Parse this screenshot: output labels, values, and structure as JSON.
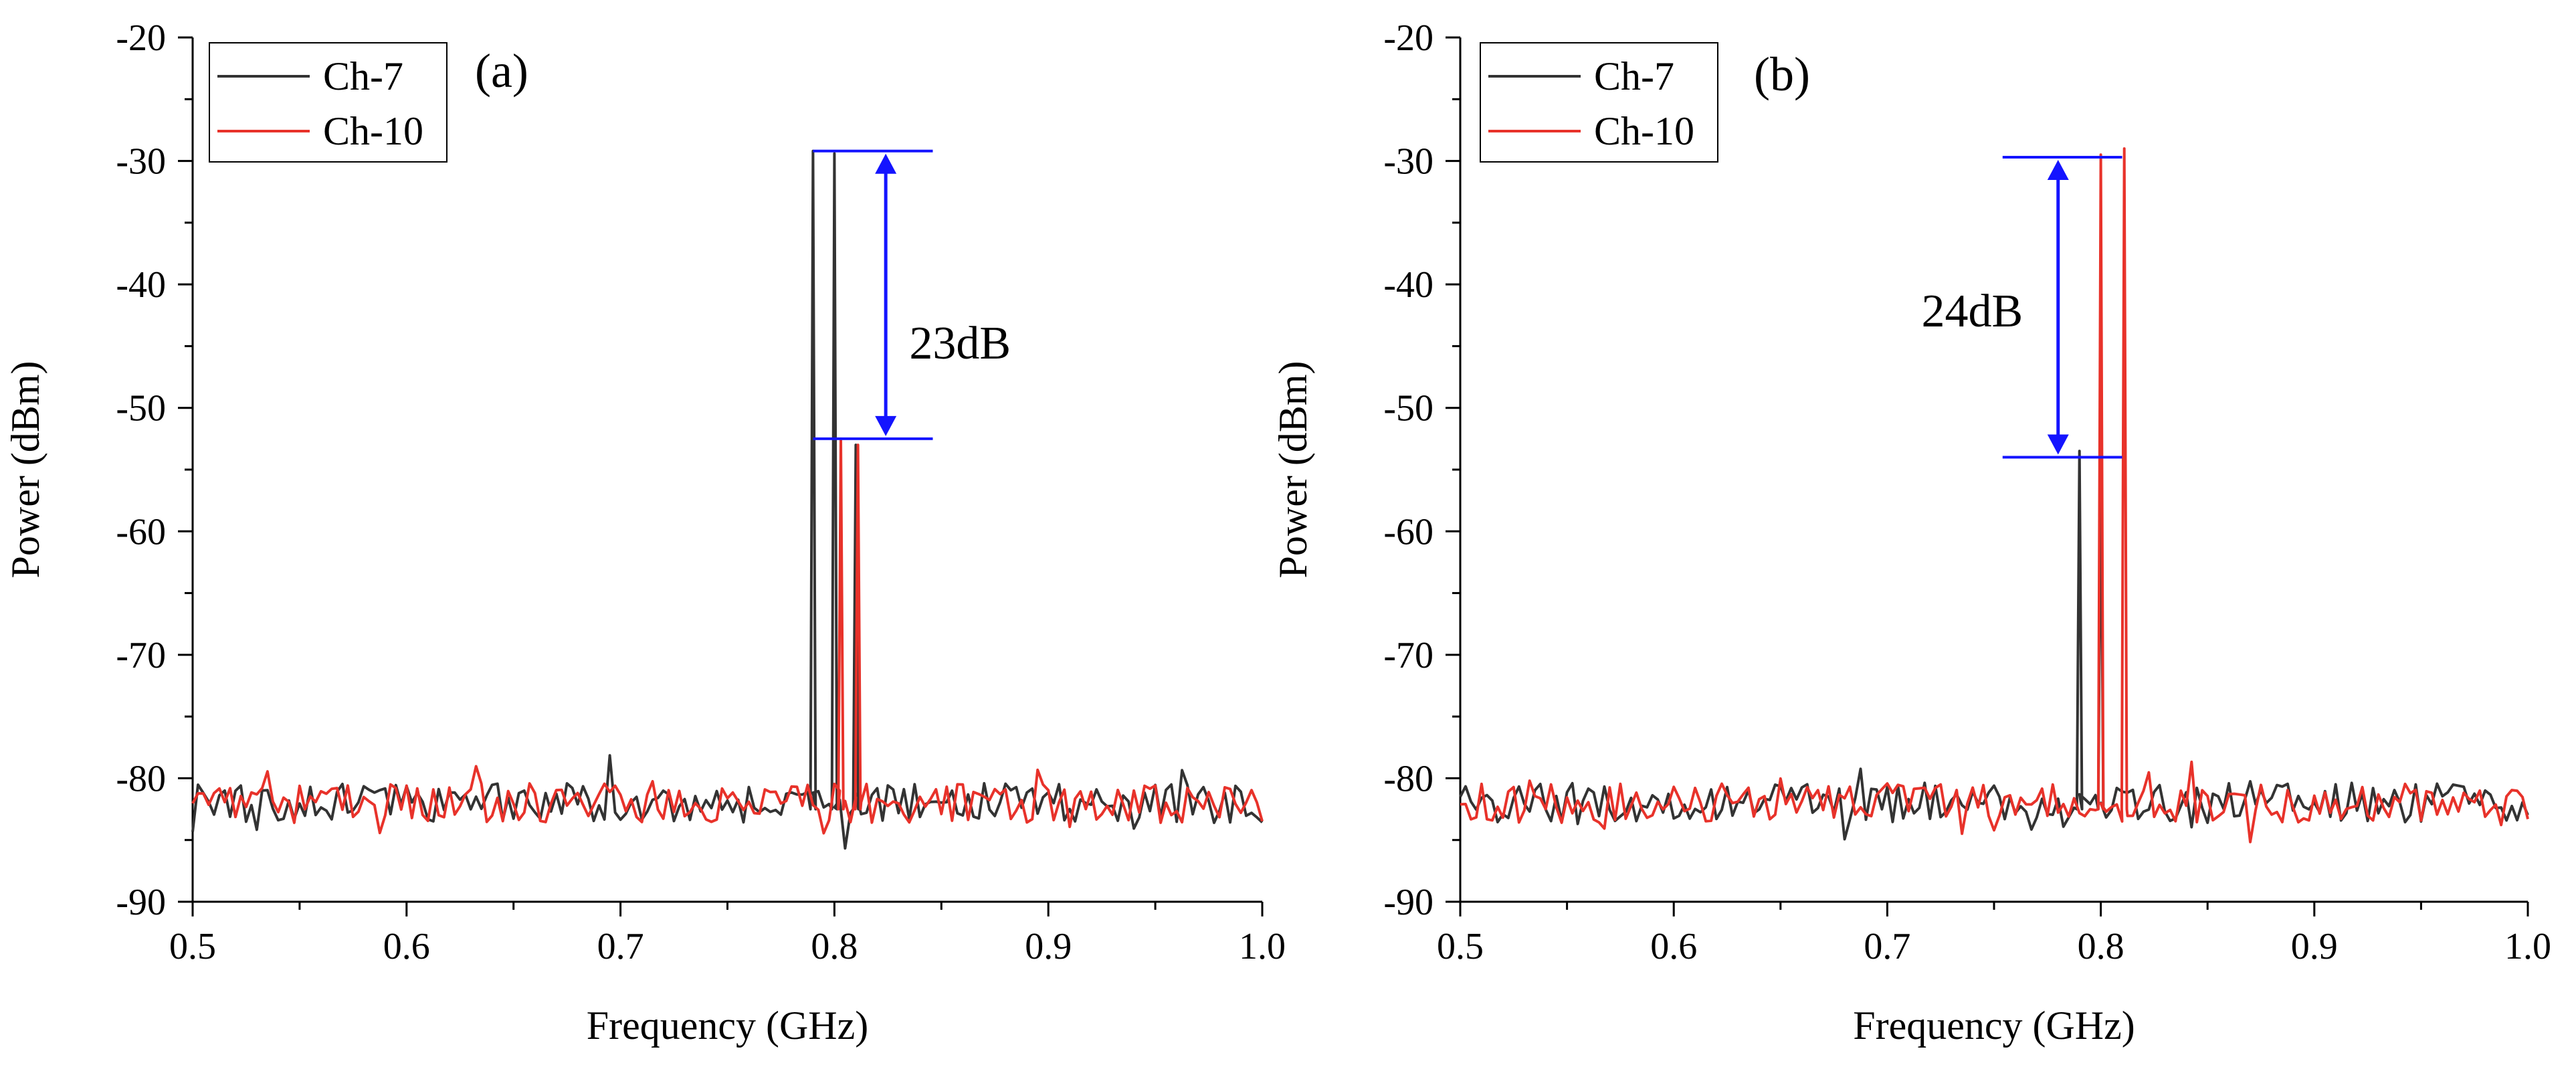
{
  "figure": {
    "description_free": true
  },
  "chart_data": [
    {
      "type": "line",
      "panel_label": "(a)",
      "xlabel": "Frequency (GHz)",
      "ylabel": "Power (dBm)",
      "xlim": [
        0.5,
        1.0
      ],
      "ylim": [
        -90,
        -20
      ],
      "xticks": [
        0.5,
        0.6,
        0.7,
        0.8,
        0.9,
        1.0
      ],
      "xtick_labels": [
        "0.5",
        "0.6",
        "0.7",
        "0.8",
        "0.9",
        "1.0"
      ],
      "yticks": [
        -90,
        -80,
        -70,
        -60,
        -50,
        -40,
        -30,
        -20
      ],
      "ytick_labels": [
        "-90",
        "-80",
        "-70",
        "-60",
        "-50",
        "-40",
        "-30",
        "-20"
      ],
      "grid": false,
      "legend_position": "top-left",
      "noise_floor_dBm": -82,
      "series": [
        {
          "name": "Ch-7",
          "color": "#333333",
          "noise_seed": 7,
          "peaks": [
            {
              "x": 0.79,
              "y": -29.2
            },
            {
              "x": 0.8,
              "y": -29.4
            },
            {
              "x": 0.81,
              "y": -53.0
            }
          ]
        },
        {
          "name": "Ch-10",
          "color": "#e8322a",
          "noise_seed": 10,
          "peaks": [
            {
              "x": 0.803,
              "y": -52.5
            },
            {
              "x": 0.811,
              "y": -53.0
            }
          ]
        }
      ],
      "annotation": {
        "text": "23dB",
        "top_dBm": -29.2,
        "bottom_dBm": -52.5,
        "line_x_range": [
          0.79,
          0.846
        ],
        "arrow_x": 0.824,
        "text_x": 0.835,
        "text_y_dBm": -46.0,
        "color": "#1414ff"
      }
    },
    {
      "type": "line",
      "panel_label": "(b)",
      "xlabel": "Frequency (GHz)",
      "ylabel": "Power (dBm)",
      "xlim": [
        0.5,
        1.0
      ],
      "ylim": [
        -90,
        -20
      ],
      "xticks": [
        0.5,
        0.6,
        0.7,
        0.8,
        0.9,
        1.0
      ],
      "xtick_labels": [
        "0.5",
        "0.6",
        "0.7",
        "0.8",
        "0.9",
        "1.0"
      ],
      "yticks": [
        -90,
        -80,
        -70,
        -60,
        -50,
        -40,
        -30,
        -20
      ],
      "ytick_labels": [
        "-90",
        "-80",
        "-70",
        "-60",
        "-50",
        "-40",
        "-30",
        "-20"
      ],
      "grid": false,
      "legend_position": "top-left",
      "noise_floor_dBm": -82,
      "series": [
        {
          "name": "Ch-7",
          "color": "#333333",
          "noise_seed": 17,
          "peaks": [
            {
              "x": 0.79,
              "y": -53.5
            },
            {
              "x": 0.8,
              "y": -53.0
            }
          ]
        },
        {
          "name": "Ch-10",
          "color": "#e8322a",
          "noise_seed": 21,
          "peaks": [
            {
              "x": 0.8,
              "y": -29.5
            },
            {
              "x": 0.811,
              "y": -29.0
            }
          ]
        }
      ],
      "annotation": {
        "text": "24dB",
        "top_dBm": -29.7,
        "bottom_dBm": -54.0,
        "line_x_range": [
          0.754,
          0.81
        ],
        "arrow_x": 0.78,
        "text_x": 0.716,
        "text_y_dBm": -43.4,
        "color": "#1414ff"
      }
    }
  ]
}
